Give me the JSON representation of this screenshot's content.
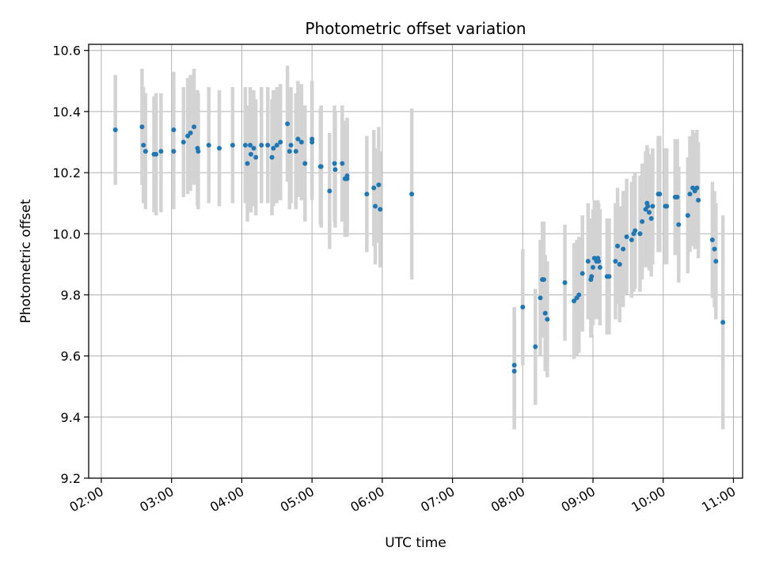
{
  "chart_data": {
    "type": "scatter",
    "title": "Photometric offset variation",
    "xlabel": "UTC time",
    "ylabel": "Photometric offset",
    "x_tick_labels": [
      "02:00",
      "03:00",
      "04:00",
      "05:00",
      "06:00",
      "07:00",
      "08:00",
      "09:00",
      "10:00",
      "11:00"
    ],
    "y_tick_labels": [
      "9.2",
      "9.4",
      "9.6",
      "9.8",
      "10.0",
      "10.2",
      "10.4",
      "10.6"
    ],
    "xlim_hours": [
      1.82,
      11.13
    ],
    "ylim": [
      9.2,
      10.62
    ],
    "x_ticks_hours": [
      2,
      3,
      4,
      5,
      6,
      7,
      8,
      9,
      10,
      11
    ],
    "y_ticks": [
      9.2,
      9.4,
      9.6,
      9.8,
      10.0,
      10.2,
      10.4,
      10.6
    ],
    "grid": true,
    "marker_color": "#1f77b4",
    "errorbar_color": "#d3d3d3",
    "points": [
      [
        2.2,
        10.34,
        10.16,
        10.52
      ],
      [
        2.58,
        10.35,
        10.16,
        10.54
      ],
      [
        2.6,
        10.29,
        10.1,
        10.48
      ],
      [
        2.63,
        10.27,
        10.08,
        10.46
      ],
      [
        2.75,
        10.26,
        10.07,
        10.45
      ],
      [
        2.78,
        10.26,
        10.06,
        10.46
      ],
      [
        2.85,
        10.27,
        10.07,
        10.46
      ],
      [
        3.03,
        10.34,
        10.15,
        10.53
      ],
      [
        3.03,
        10.27,
        10.08,
        10.46
      ],
      [
        3.17,
        10.3,
        10.12,
        10.48
      ],
      [
        3.23,
        10.32,
        10.13,
        10.51
      ],
      [
        3.27,
        10.33,
        10.14,
        10.52
      ],
      [
        3.32,
        10.35,
        10.16,
        10.54
      ],
      [
        3.37,
        10.28,
        10.09,
        10.47
      ],
      [
        3.38,
        10.27,
        10.08,
        10.46
      ],
      [
        3.53,
        10.29,
        10.1,
        10.48
      ],
      [
        3.68,
        10.28,
        10.09,
        10.47
      ],
      [
        3.87,
        10.29,
        10.1,
        10.48
      ],
      [
        4.05,
        10.29,
        10.1,
        10.48
      ],
      [
        4.08,
        10.23,
        10.04,
        10.42
      ],
      [
        4.12,
        10.29,
        10.1,
        10.48
      ],
      [
        4.13,
        10.26,
        10.07,
        10.45
      ],
      [
        4.17,
        10.28,
        10.09,
        10.47
      ],
      [
        4.2,
        10.25,
        10.06,
        10.44
      ],
      [
        4.28,
        10.29,
        10.1,
        10.48
      ],
      [
        4.37,
        10.29,
        10.1,
        10.48
      ],
      [
        4.43,
        10.25,
        10.06,
        10.44
      ],
      [
        4.45,
        10.28,
        10.09,
        10.47
      ],
      [
        4.5,
        10.29,
        10.1,
        10.48
      ],
      [
        4.55,
        10.3,
        10.11,
        10.49
      ],
      [
        4.65,
        10.36,
        10.17,
        10.55
      ],
      [
        4.68,
        10.27,
        10.08,
        10.46
      ],
      [
        4.7,
        10.29,
        10.1,
        10.48
      ],
      [
        4.77,
        10.27,
        10.08,
        10.46
      ],
      [
        4.8,
        10.31,
        10.12,
        10.5
      ],
      [
        4.85,
        10.3,
        10.11,
        10.49
      ],
      [
        4.9,
        10.23,
        10.04,
        10.42
      ],
      [
        5.0,
        10.31,
        10.12,
        10.5
      ],
      [
        5.0,
        10.3,
        10.11,
        10.49
      ],
      [
        5.12,
        10.22,
        10.03,
        10.41
      ],
      [
        5.13,
        10.22,
        10.02,
        10.42
      ],
      [
        5.25,
        10.14,
        9.95,
        10.33
      ],
      [
        5.32,
        10.23,
        10.04,
        10.42
      ],
      [
        5.33,
        10.21,
        10.02,
        10.4
      ],
      [
        5.43,
        10.23,
        10.04,
        10.42
      ],
      [
        5.47,
        10.18,
        9.99,
        10.37
      ],
      [
        5.5,
        10.19,
        10.0,
        10.38
      ],
      [
        5.5,
        10.18,
        9.99,
        10.37
      ],
      [
        5.78,
        10.13,
        9.94,
        10.32
      ],
      [
        5.88,
        10.15,
        9.96,
        10.34
      ],
      [
        5.9,
        10.09,
        9.9,
        10.28
      ],
      [
        5.95,
        10.16,
        9.97,
        10.35
      ],
      [
        5.97,
        10.08,
        9.89,
        10.27
      ],
      [
        6.42,
        10.13,
        9.85,
        10.41
      ],
      [
        7.88,
        9.57,
        9.38,
        9.76
      ],
      [
        7.88,
        9.55,
        9.36,
        9.74
      ],
      [
        8.0,
        9.76,
        9.57,
        9.95
      ],
      [
        8.18,
        9.63,
        9.44,
        9.82
      ],
      [
        8.25,
        9.79,
        9.6,
        9.98
      ],
      [
        8.28,
        9.85,
        9.66,
        10.04
      ],
      [
        8.3,
        9.85,
        9.66,
        10.04
      ],
      [
        8.32,
        9.74,
        9.55,
        9.93
      ],
      [
        8.35,
        9.72,
        9.53,
        9.91
      ],
      [
        8.6,
        9.84,
        9.65,
        10.03
      ],
      [
        8.73,
        9.78,
        9.59,
        9.97
      ],
      [
        8.77,
        9.79,
        9.6,
        9.98
      ],
      [
        8.8,
        9.8,
        9.61,
        9.99
      ],
      [
        8.85,
        9.87,
        9.68,
        10.06
      ],
      [
        8.93,
        9.91,
        9.72,
        10.1
      ],
      [
        8.97,
        9.85,
        9.66,
        10.04
      ],
      [
        8.98,
        9.86,
        9.67,
        10.05
      ],
      [
        9.0,
        9.89,
        9.7,
        10.08
      ],
      [
        9.02,
        9.92,
        9.73,
        10.11
      ],
      [
        9.05,
        9.91,
        9.72,
        10.1
      ],
      [
        9.07,
        9.92,
        9.73,
        10.11
      ],
      [
        9.08,
        9.91,
        9.72,
        10.1
      ],
      [
        9.1,
        9.89,
        9.7,
        10.08
      ],
      [
        9.2,
        9.86,
        9.67,
        10.05
      ],
      [
        9.23,
        9.86,
        9.67,
        10.05
      ],
      [
        9.32,
        9.91,
        9.72,
        10.1
      ],
      [
        9.35,
        9.96,
        9.77,
        10.15
      ],
      [
        9.38,
        9.9,
        9.71,
        10.09
      ],
      [
        9.43,
        9.95,
        9.76,
        10.14
      ],
      [
        9.48,
        9.99,
        9.8,
        10.18
      ],
      [
        9.55,
        9.98,
        9.79,
        10.17
      ],
      [
        9.58,
        10.0,
        9.81,
        10.19
      ],
      [
        9.6,
        10.01,
        9.82,
        10.2
      ],
      [
        9.67,
        10.0,
        9.81,
        10.19
      ],
      [
        9.7,
        10.04,
        9.85,
        10.23
      ],
      [
        9.75,
        10.08,
        9.89,
        10.27
      ],
      [
        9.77,
        10.1,
        9.91,
        10.29
      ],
      [
        9.78,
        10.09,
        9.9,
        10.28
      ],
      [
        9.8,
        10.07,
        9.88,
        10.26
      ],
      [
        9.83,
        10.05,
        9.86,
        10.24
      ],
      [
        9.85,
        10.09,
        9.9,
        10.28
      ],
      [
        9.93,
        10.13,
        9.94,
        10.32
      ],
      [
        9.95,
        10.13,
        9.94,
        10.32
      ],
      [
        10.03,
        10.09,
        9.9,
        10.28
      ],
      [
        10.05,
        10.09,
        9.9,
        10.28
      ],
      [
        10.17,
        10.12,
        9.93,
        10.31
      ],
      [
        10.2,
        10.12,
        9.93,
        10.31
      ],
      [
        10.22,
        10.03,
        9.84,
        10.22
      ],
      [
        10.35,
        10.06,
        9.87,
        10.25
      ],
      [
        10.38,
        10.13,
        9.94,
        10.32
      ],
      [
        10.42,
        10.15,
        9.96,
        10.34
      ],
      [
        10.45,
        10.14,
        9.95,
        10.33
      ],
      [
        10.48,
        10.15,
        9.96,
        10.34
      ],
      [
        10.5,
        10.11,
        9.92,
        10.3
      ],
      [
        10.7,
        9.98,
        9.79,
        10.17
      ],
      [
        10.73,
        9.95,
        9.76,
        10.14
      ],
      [
        10.75,
        9.91,
        9.72,
        10.1
      ],
      [
        10.85,
        9.71,
        9.36,
        10.06
      ]
    ]
  }
}
